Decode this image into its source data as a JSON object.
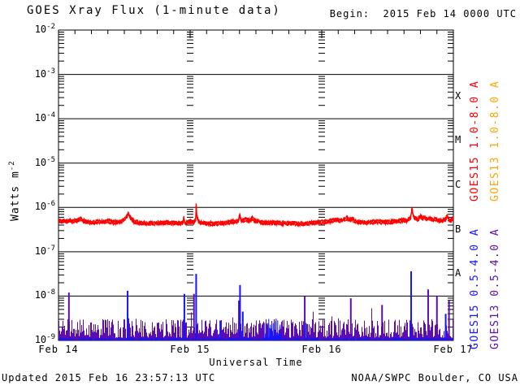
{
  "header": {
    "title": "GOES Xray Flux (1-minute data)",
    "begin_label": "Begin:  2015 Feb 14 0000 UTC"
  },
  "footer": {
    "updated": "Updated 2015 Feb 16 23:57:13 UTC",
    "attribution": "NOAA/SWPC Boulder, CO USA"
  },
  "chart_data": {
    "type": "line",
    "title": "GOES Xray Flux (1-minute data)",
    "x_axis": {
      "label": "Universal Time",
      "range_hours": [
        0,
        72
      ],
      "tick_hours": [
        0,
        24,
        48,
        72
      ],
      "tick_labels": [
        "Feb 14",
        "Feb 15",
        "Feb 16",
        "Feb 17"
      ],
      "minor_tick_interval_hours": 3,
      "gridline_hours": [
        24,
        48
      ]
    },
    "y_axis": {
      "label": {
        "base": "Watts m",
        "exp": "-2"
      },
      "scale": "log",
      "log_range": [
        -2,
        -9
      ],
      "ticks": [
        {
          "base": "10",
          "exp": "-2"
        },
        {
          "base": "10",
          "exp": "-3"
        },
        {
          "base": "10",
          "exp": "-4"
        },
        {
          "base": "10",
          "exp": "-5"
        },
        {
          "base": "10",
          "exp": "-6"
        },
        {
          "base": "10",
          "exp": "-7"
        },
        {
          "base": "10",
          "exp": "-8"
        },
        {
          "base": "10",
          "exp": "-9"
        }
      ]
    },
    "flare_classes": [
      {
        "label": "X",
        "log_center": -3.5
      },
      {
        "label": "M",
        "log_center": -4.5
      },
      {
        "label": "C",
        "log_center": -5.5
      },
      {
        "label": "B",
        "log_center": -6.5
      },
      {
        "label": "A",
        "log_center": -7.5
      }
    ],
    "series": [
      {
        "name": "GOES15 1.0-8.0 A",
        "color": "#ff0000",
        "style": "line",
        "noise_log10": 0.032,
        "keypoints_hour_log10flux": [
          [
            0,
            -6.27
          ],
          [
            0.5,
            -6.3
          ],
          [
            1,
            -6.27
          ],
          [
            1.5,
            -6.3
          ],
          [
            2,
            -6.26
          ],
          [
            2.5,
            -6.3
          ],
          [
            3,
            -6.28
          ],
          [
            3.5,
            -6.26
          ],
          [
            4,
            -6.23
          ],
          [
            4.3,
            -6.27
          ],
          [
            5,
            -6.3
          ],
          [
            6,
            -6.32
          ],
          [
            7,
            -6.31
          ],
          [
            8,
            -6.3
          ],
          [
            9,
            -6.29
          ],
          [
            10,
            -6.31
          ],
          [
            11,
            -6.31
          ],
          [
            12,
            -6.26
          ],
          [
            12.4,
            -6.18
          ],
          [
            12.75,
            -6.11
          ],
          [
            13.1,
            -6.2
          ],
          [
            13.5,
            -6.27
          ],
          [
            14,
            -6.31
          ],
          [
            15,
            -6.33
          ],
          [
            16,
            -6.34
          ],
          [
            17,
            -6.33
          ],
          [
            18,
            -6.33
          ],
          [
            19,
            -6.32
          ],
          [
            20,
            -6.32
          ],
          [
            21,
            -6.33
          ],
          [
            22,
            -6.34
          ],
          [
            22.7,
            -6.33
          ],
          [
            22.85,
            -6.18
          ],
          [
            23,
            -6.33
          ],
          [
            23.5,
            -6.32
          ],
          [
            24,
            -6.3
          ],
          [
            24.8,
            -6.31
          ],
          [
            25,
            -6.25
          ],
          [
            25.1,
            -5.92
          ],
          [
            25.25,
            -6.2
          ],
          [
            25.5,
            -6.28
          ],
          [
            26,
            -6.32
          ],
          [
            27,
            -6.34
          ],
          [
            28,
            -6.35
          ],
          [
            29,
            -6.34
          ],
          [
            30,
            -6.33
          ],
          [
            31,
            -6.32
          ],
          [
            32,
            -6.3
          ],
          [
            32.8,
            -6.28
          ],
          [
            33.05,
            -6.16
          ],
          [
            33.3,
            -6.28
          ],
          [
            33.7,
            -6.27
          ],
          [
            34.2,
            -6.24
          ],
          [
            34.6,
            -6.28
          ],
          [
            35,
            -6.26
          ],
          [
            35.4,
            -6.23
          ],
          [
            35.8,
            -6.28
          ],
          [
            36.5,
            -6.3
          ],
          [
            37,
            -6.32
          ],
          [
            38,
            -6.33
          ],
          [
            39,
            -6.32
          ],
          [
            40,
            -6.33
          ],
          [
            41,
            -6.34
          ],
          [
            42,
            -6.33
          ],
          [
            43,
            -6.34
          ],
          [
            44,
            -6.35
          ],
          [
            45,
            -6.34
          ],
          [
            46,
            -6.33
          ],
          [
            47,
            -6.32
          ],
          [
            48,
            -6.31
          ],
          [
            49,
            -6.3
          ],
          [
            50,
            -6.28
          ],
          [
            50.7,
            -6.24
          ],
          [
            51.2,
            -6.28
          ],
          [
            52,
            -6.26
          ],
          [
            52.6,
            -6.21
          ],
          [
            53,
            -6.26
          ],
          [
            53.6,
            -6.23
          ],
          [
            54,
            -6.29
          ],
          [
            55,
            -6.31
          ],
          [
            56,
            -6.32
          ],
          [
            57,
            -6.31
          ],
          [
            58,
            -6.3
          ],
          [
            59,
            -6.31
          ],
          [
            60,
            -6.31
          ],
          [
            61,
            -6.3
          ],
          [
            62,
            -6.29
          ],
          [
            63,
            -6.26
          ],
          [
            63.5,
            -6.27
          ],
          [
            64.2,
            -6.22
          ],
          [
            64.45,
            -6.0
          ],
          [
            64.7,
            -6.18
          ],
          [
            65,
            -6.22
          ],
          [
            65.5,
            -6.25
          ],
          [
            66,
            -6.17
          ],
          [
            66.3,
            -6.22
          ],
          [
            66.8,
            -6.2
          ],
          [
            67.2,
            -6.25
          ],
          [
            67.7,
            -6.22
          ],
          [
            68.2,
            -6.26
          ],
          [
            68.7,
            -6.24
          ],
          [
            69.3,
            -6.27
          ],
          [
            70,
            -6.28
          ],
          [
            70.5,
            -6.25
          ],
          [
            70.9,
            -6.17
          ],
          [
            71.2,
            -6.26
          ],
          [
            71.6,
            -6.28
          ],
          [
            71.9,
            -6.2
          ],
          [
            72,
            -6.24
          ]
        ]
      },
      {
        "name": "GOES13 1.0-8.0 A",
        "color": "#ffa500",
        "style": "line",
        "trace_visible": false
      },
      {
        "name": "GOES15 0.5-4.0 A",
        "color": "#1414ff",
        "style": "baseline-spikes",
        "baseline_log10": -8.93,
        "baseline_noise_log10": 0.15,
        "elevated_interval_hours": [
          37.6,
          40.6
        ],
        "spikes_hour_log10flux": [
          [
            12.6,
            -7.88
          ],
          [
            22.95,
            -7.95
          ],
          [
            25.1,
            -7.5
          ],
          [
            29.5,
            -8.55
          ],
          [
            33.1,
            -7.75
          ],
          [
            33.6,
            -8.35
          ],
          [
            45.0,
            -8.6
          ],
          [
            64.3,
            -7.44
          ],
          [
            70.6,
            -8.4
          ]
        ]
      },
      {
        "name": "GOES13 0.5-4.0 A",
        "color": "#5c0cb0",
        "style": "noise-fill",
        "floor_log10": -9.0,
        "typical_top_log10": -8.55,
        "spikes_hour_log10flux": [
          [
            1.9,
            -7.92
          ],
          [
            24.7,
            -7.95
          ],
          [
            32.9,
            -8.1
          ],
          [
            44.9,
            -8.0
          ],
          [
            53.3,
            -8.05
          ],
          [
            59.0,
            -8.2
          ],
          [
            67.4,
            -7.85
          ],
          [
            69.0,
            -8.0
          ],
          [
            71.2,
            -8.1
          ]
        ]
      }
    ]
  }
}
